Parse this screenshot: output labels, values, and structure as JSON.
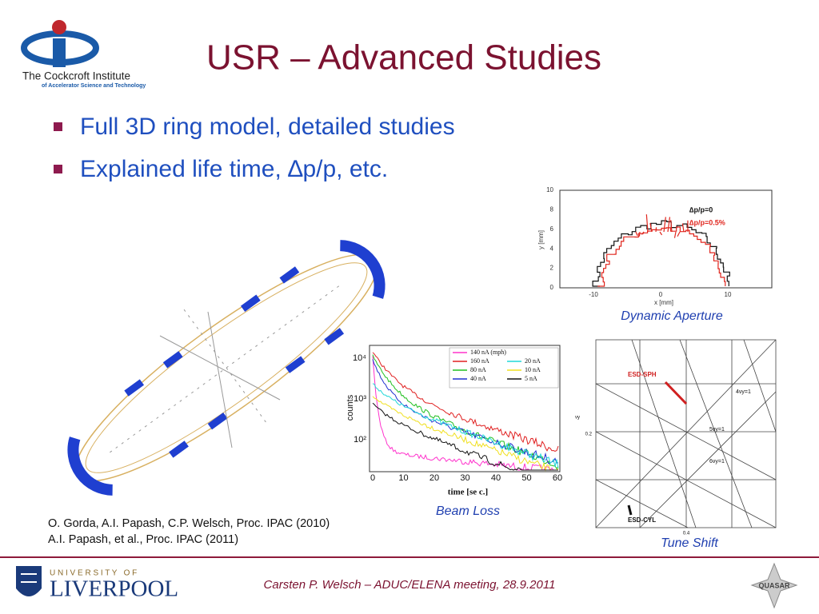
{
  "header": {
    "logo": {
      "name": "The Cockcroft Institute",
      "tagline": "of Accelerator Science and Technology"
    },
    "title": "USR – Advanced Studies"
  },
  "bullets": [
    "Full 3D ring model, detailed studies",
    "Explained life time, ∆p/p, etc."
  ],
  "figures": {
    "dynamic_aperture": {
      "caption": "Dynamic Aperture",
      "x_label": "x [mm]",
      "y_label": "y [mm]",
      "xticks": [
        "-10",
        "0",
        "10"
      ],
      "yticks": [
        "0",
        "2",
        "4",
        "6",
        "8",
        "10"
      ],
      "legend": [
        "∆p/p=0",
        "∆p/p=0.5%"
      ]
    },
    "beam_loss": {
      "caption": "Beam Loss",
      "x_label": "time [se c.]",
      "y_label": "counts",
      "xticks": [
        "0",
        "10",
        "20",
        "30",
        "40",
        "50",
        "60"
      ],
      "yticks": [
        "10⁴",
        "10³",
        "10²"
      ],
      "legend": [
        "140 nA (mph)",
        "160 nA",
        "80 nA",
        "40 nA",
        "20 nA",
        "10 nA",
        "5 nA"
      ]
    },
    "tune_shift": {
      "caption": "Tune Shift",
      "labels": [
        "ESD-SPH",
        "ESD-CYL",
        "4νy=1",
        "5νy=1",
        "6νy=1"
      ],
      "xtick": "0.4",
      "ytick": "0.2",
      "y_label": "νy"
    }
  },
  "references": [
    "O. Gorda, A.I. Papash, C.P. Welsch, Proc. IPAC (2010)",
    "A.I. Papash, et al., Proc. IPAC (2011)"
  ],
  "footer": {
    "text": "Carsten P. Welsch – ADUC/ELENA meeting, 28.9.2011",
    "university_line": "U N I V E R S I T Y   O F",
    "university": "LIVERPOOL",
    "partner": "QUASAR"
  }
}
